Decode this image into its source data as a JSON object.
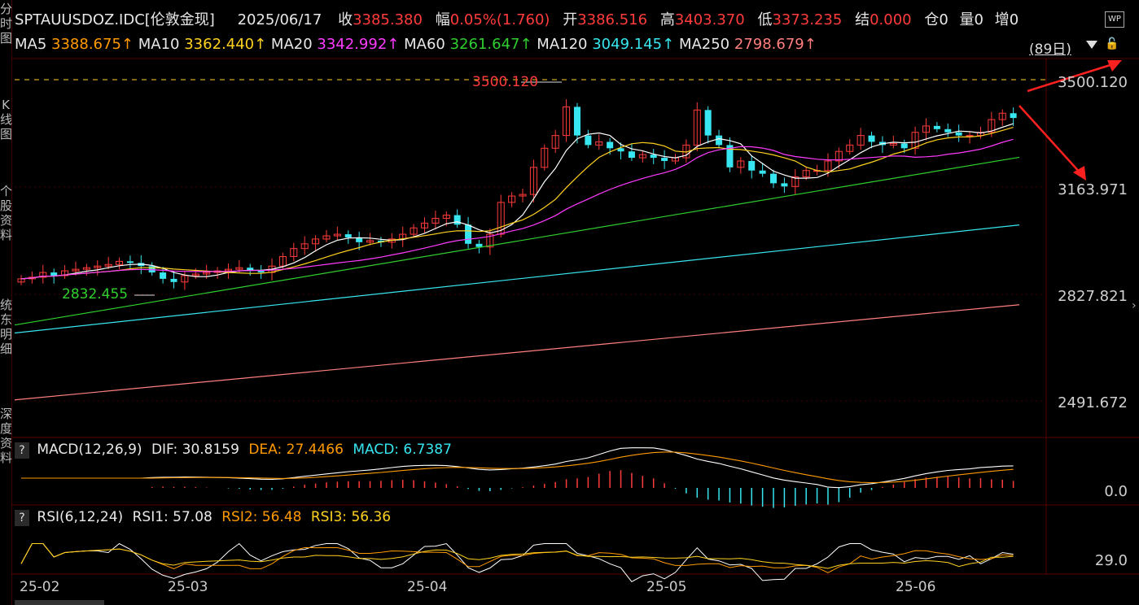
{
  "header": {
    "symbol": "SPTAUUSDOZ.IDC[伦敦金现]",
    "date": "2025/06/17",
    "close_label": "收",
    "close": "3385.380",
    "range_label": "幅",
    "range": "0.05%(1.760)",
    "open_label": "开",
    "open": "3386.516",
    "high_label": "高",
    "high": "3403.370",
    "low_label": "低",
    "low": "3373.235",
    "settle_label": "结",
    "settle": "0.000",
    "position_label": "仓",
    "position": "0",
    "volume_label": "量",
    "volume": "0",
    "increase_label": "增",
    "increase": "0"
  },
  "ma_bar": {
    "ma5_label": "MA5",
    "ma5": "3388.675↑",
    "ma10_label": "MA10",
    "ma10": "3362.440↑",
    "ma20_label": "MA20",
    "ma20": "3342.992↑",
    "ma60_label": "MA60",
    "ma60": "3261.647↑",
    "ma120_label": "MA120",
    "ma120": "3049.145↑",
    "ma250_label": "MA250",
    "ma250": "2798.679↑",
    "period": "(89日)"
  },
  "wp_icon_text": "WP",
  "sidebar": {
    "labels": [
      "分",
      "时",
      "图",
      "K",
      "线",
      "图",
      "个",
      "股",
      "资",
      "料",
      "统",
      "东",
      "明",
      "细",
      "深",
      "度",
      "资",
      "料"
    ]
  },
  "price_axis": [
    "3500.120",
    "3163.971",
    "2827.821",
    "2491.672"
  ],
  "annotations": {
    "high": "3500.120",
    "low": "2832.455"
  },
  "macd": {
    "help": "?",
    "title": "MACD(12,26,9)",
    "dif": "DIF: 30.8159",
    "dea": "DEA: 27.4466",
    "macd": "MACD: 6.7387",
    "axis": "0.0"
  },
  "rsi": {
    "help": "?",
    "title": "RSI(6,12,24)",
    "rsi1": "RSI1: 57.08",
    "rsi2": "RSI2: 56.48",
    "rsi3": "RSI3: 56.36",
    "axis": "29.0"
  },
  "x_axis": [
    "25-02",
    "25-03",
    "25-04",
    "25-05",
    "25-06"
  ],
  "colors": {
    "up": "#ff3b3b",
    "down": "#37e6f0",
    "ma5": "#ffffff",
    "ma10": "#ffd21f",
    "ma20": "#ff3bff",
    "ma60": "#2fcf2f",
    "ma120": "#37e6f0",
    "ma250": "#ff7f7f"
  },
  "chart_data": {
    "type": "candlestick",
    "y_range": [
      2491.672,
      3500.12
    ],
    "max_point": 3500.12,
    "min_point": 2832.455,
    "closes": [
      2880,
      2885,
      2900,
      2890,
      2905,
      2910,
      2915,
      2920,
      2925,
      2935,
      2930,
      2920,
      2900,
      2880,
      2870,
      2890,
      2895,
      2900,
      2905,
      2910,
      2915,
      2905,
      2900,
      2920,
      2950,
      2975,
      2990,
      3005,
      3015,
      3020,
      3010,
      2995,
      3000,
      2995,
      3005,
      3020,
      3040,
      3055,
      3070,
      3080,
      3050,
      2990,
      2980,
      3020,
      3120,
      3140,
      3145,
      3230,
      3290,
      3330,
      3420,
      3330,
      3300,
      3310,
      3290,
      3280,
      3260,
      3270,
      3260,
      3250,
      3260,
      3300,
      3410,
      3330,
      3300,
      3230,
      3250,
      3220,
      3210,
      3180,
      3170,
      3200,
      3220,
      3220,
      3250,
      3280,
      3300,
      3330,
      3310,
      3300,
      3305,
      3290,
      3340,
      3360,
      3350,
      3340,
      3330,
      3330,
      3340,
      3380,
      3400,
      3385
    ]
  }
}
